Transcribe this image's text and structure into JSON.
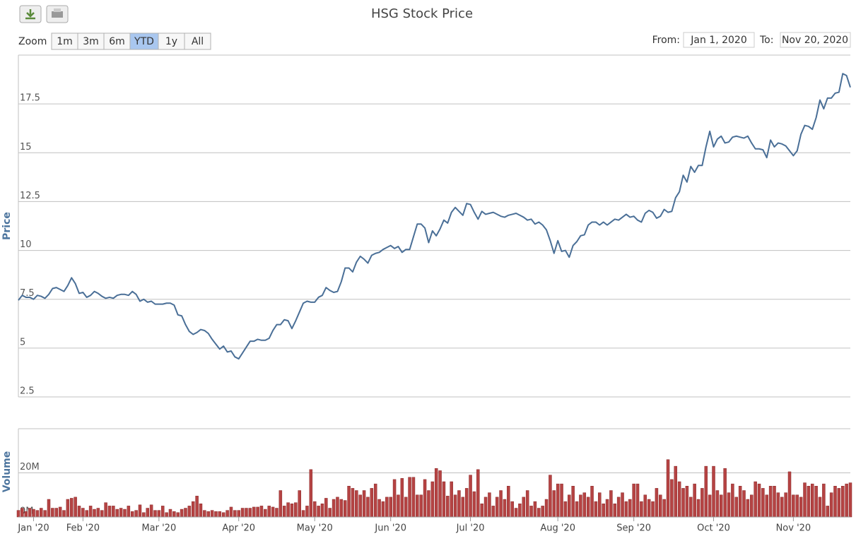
{
  "toolbar": {
    "zoom_label": "Zoom",
    "ranges": [
      "1m",
      "3m",
      "6m",
      "YTD",
      "1y",
      "All"
    ],
    "active": "YTD",
    "from_label": "From:",
    "from": "Jan 1, 2020",
    "to_label": "To:",
    "to": "Nov 20, 2020"
  },
  "chart_data": [
    {
      "type": "line",
      "title": "HSG Stock Price",
      "y_label": "Price",
      "color": "#4a6f97",
      "xlim": [
        0,
        219
      ],
      "ylim": [
        2.5,
        20
      ],
      "yticks": [
        2.5,
        5,
        7.5,
        10,
        12.5,
        15,
        17.5
      ],
      "grid": true,
      "values": [
        7.45,
        7.7,
        7.6,
        7.6,
        7.5,
        7.7,
        7.65,
        7.55,
        7.75,
        8.05,
        8.1,
        8.0,
        7.9,
        8.2,
        8.6,
        8.3,
        7.8,
        7.85,
        7.6,
        7.7,
        7.9,
        7.8,
        7.65,
        7.55,
        7.6,
        7.55,
        7.7,
        7.75,
        7.75,
        7.7,
        7.9,
        7.75,
        7.4,
        7.5,
        7.35,
        7.4,
        7.25,
        7.25,
        7.25,
        7.3,
        7.3,
        7.2,
        6.7,
        6.65,
        6.2,
        5.85,
        5.7,
        5.8,
        5.95,
        5.9,
        5.75,
        5.45,
        5.2,
        4.95,
        5.1,
        4.8,
        4.85,
        4.55,
        4.45,
        4.75,
        5.05,
        5.35,
        5.35,
        5.45,
        5.4,
        5.4,
        5.5,
        5.9,
        6.2,
        6.2,
        6.45,
        6.4,
        6.0,
        6.4,
        6.85,
        7.3,
        7.4,
        7.35,
        7.35,
        7.6,
        7.7,
        8.1,
        7.95,
        7.85,
        7.9,
        8.4,
        9.1,
        9.1,
        8.9,
        9.4,
        9.7,
        9.55,
        9.35,
        9.75,
        9.85,
        9.9,
        10.05,
        10.15,
        10.25,
        10.1,
        10.2,
        9.9,
        10.05,
        10.05,
        10.7,
        11.35,
        11.35,
        11.15,
        10.4,
        11.0,
        10.75,
        11.1,
        11.55,
        11.4,
        11.95,
        12.2,
        12.0,
        11.8,
        12.4,
        12.35,
        11.95,
        11.6,
        12.0,
        11.85,
        11.9,
        11.95,
        11.85,
        11.75,
        11.7,
        11.8,
        11.85,
        11.9,
        11.8,
        11.7,
        11.55,
        11.6,
        11.35,
        11.45,
        11.3,
        11.05,
        10.5,
        9.85,
        10.5,
        9.95,
        10.0,
        9.65,
        10.25,
        10.45,
        10.75,
        10.8,
        11.3,
        11.45,
        11.45,
        11.3,
        11.45,
        11.3,
        11.45,
        11.6,
        11.55,
        11.7,
        11.85,
        11.7,
        11.75,
        11.55,
        11.45,
        11.9,
        12.05,
        11.95,
        11.65,
        11.75,
        12.1,
        11.95,
        12.0,
        12.7,
        13.0,
        13.85,
        13.5,
        14.3,
        14.0,
        14.35,
        14.35,
        15.3,
        16.1,
        15.3,
        15.7,
        15.85,
        15.5,
        15.55,
        15.8,
        15.85,
        15.8,
        15.75,
        15.85,
        15.5,
        15.2,
        15.2,
        15.15,
        14.75,
        15.65,
        15.3,
        15.5,
        15.45,
        15.35,
        15.1,
        14.85,
        15.1,
        15.95,
        16.4,
        16.35,
        16.2,
        16.8,
        17.7,
        17.25,
        17.8,
        17.8,
        18.05,
        18.1,
        19.05,
        18.95,
        18.35
      ]
    },
    {
      "type": "bar",
      "y_label": "Volume",
      "color": "#b54343",
      "xlim": [
        0,
        219
      ],
      "ylim": [
        0,
        40
      ],
      "yticks": [
        {
          "value": 0,
          "label": "0M"
        },
        {
          "value": 20,
          "label": "20M"
        }
      ],
      "grid": true,
      "xticks": [
        {
          "value": 4,
          "label": "Jan '20"
        },
        {
          "value": 17,
          "label": "Feb '20"
        },
        {
          "value": 37,
          "label": "Mar '20"
        },
        {
          "value": 58,
          "label": "Apr '20"
        },
        {
          "value": 78,
          "label": "May '20"
        },
        {
          "value": 98,
          "label": "Jun '20"
        },
        {
          "value": 119,
          "label": "Jul '20"
        },
        {
          "value": 142,
          "label": "Aug '20"
        },
        {
          "value": 162,
          "label": "Sep '20"
        },
        {
          "value": 183,
          "label": "Oct '20"
        },
        {
          "value": 204,
          "label": "Nov '20"
        }
      ],
      "values": [
        3,
        4,
        2.5,
        4,
        3.5,
        3,
        4,
        3,
        8,
        4,
        4,
        4.5,
        3,
        8,
        8.5,
        9,
        5,
        4,
        3,
        5,
        3.5,
        4,
        3,
        6.5,
        5,
        5,
        3.5,
        4,
        3.5,
        5,
        2.5,
        3,
        5.5,
        2,
        4,
        5.5,
        3,
        3,
        5,
        2,
        3.5,
        2.5,
        2,
        3.5,
        4,
        5,
        7,
        9.5,
        6,
        3,
        2.5,
        3,
        2.5,
        2.5,
        2,
        3,
        4.5,
        3,
        3,
        4,
        4,
        4,
        4.5,
        4.5,
        5,
        3.5,
        5,
        4.5,
        4,
        12,
        5,
        6.5,
        6,
        6.5,
        12,
        3,
        5,
        21.5,
        7,
        5,
        6,
        8.5,
        4,
        8,
        9,
        8,
        7.5,
        14,
        13,
        12,
        10,
        12,
        9,
        13,
        15,
        8,
        7,
        9,
        9,
        17,
        10,
        17.5,
        9,
        18,
        18,
        10,
        10,
        17,
        12,
        16,
        22,
        21,
        16,
        9.5,
        16,
        10,
        12,
        9,
        13,
        19,
        11.5,
        21.5,
        6,
        9,
        11,
        5,
        9,
        12,
        8,
        14,
        7,
        4,
        6,
        9,
        12,
        5,
        7,
        4,
        5,
        8,
        19,
        12,
        15,
        15,
        7,
        10,
        14,
        7,
        10,
        11,
        9,
        14,
        7,
        11,
        6,
        8,
        12,
        6,
        9,
        11,
        7,
        8,
        15,
        15,
        7,
        10,
        8,
        7,
        13,
        10,
        8,
        26,
        17,
        23,
        16,
        13,
        14,
        9,
        15,
        8,
        13,
        23,
        10,
        23,
        12,
        10,
        22,
        11,
        15,
        9,
        14,
        12,
        8,
        10,
        16,
        15,
        13,
        10,
        14,
        14,
        11,
        9,
        11,
        20.5,
        10,
        10,
        9,
        15.5,
        14,
        15,
        14,
        9,
        15,
        5,
        11,
        14,
        13,
        14,
        15,
        15.5
      ]
    }
  ]
}
